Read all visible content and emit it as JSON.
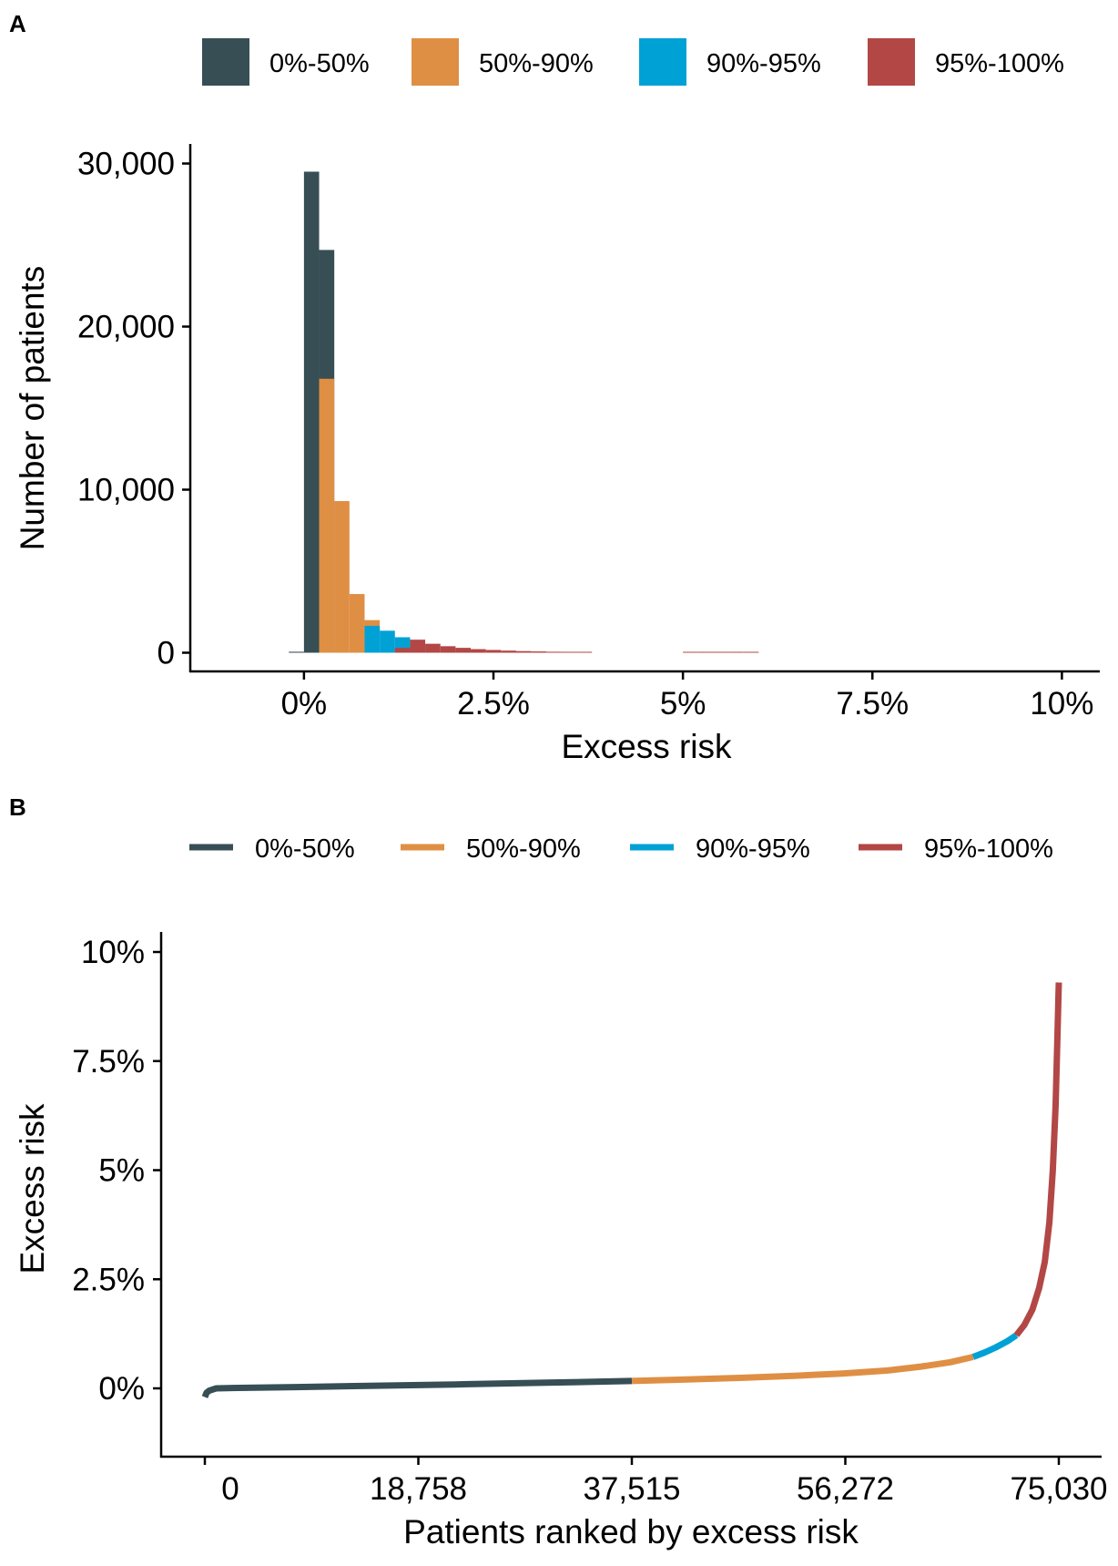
{
  "colors": {
    "0%-50%": "#374e55",
    "50%-90%": "#df8f44",
    "90%-95%": "#00a1d5",
    "95%-100%": "#b24745"
  },
  "chart_data": [
    {
      "panel": "A",
      "type": "bar",
      "legend": [
        "0%-50%",
        "50%-90%",
        "90%-95%",
        "95%-100%"
      ],
      "legend_position": "top",
      "xlabel": "Excess risk",
      "ylabel": "Number of patients",
      "xlim": [
        -1.5,
        10.5
      ],
      "ylim": [
        0,
        31000
      ],
      "x_ticks": [
        {
          "value": 0,
          "label": "0%"
        },
        {
          "value": 2.5,
          "label": "2.5%"
        },
        {
          "value": 5,
          "label": "5%"
        },
        {
          "value": 7.5,
          "label": "7.5%"
        },
        {
          "value": 10,
          "label": "10%"
        }
      ],
      "y_ticks": [
        {
          "value": 0,
          "label": "0"
        },
        {
          "value": 10000,
          "label": "10,000"
        },
        {
          "value": 20000,
          "label": "20,000"
        },
        {
          "value": 30000,
          "label": "30,000"
        }
      ],
      "grid": false,
      "bin_width": 0.2,
      "bins": [
        {
          "x": -0.2,
          "count": 60,
          "group": "0%-50%"
        },
        {
          "x": 0.0,
          "count": 29500,
          "group": "0%-50%"
        },
        {
          "x": 0.2,
          "count": 24700,
          "group": "0%-50%"
        },
        {
          "x": 0.2,
          "count": 16800,
          "group": "50%-90%"
        },
        {
          "x": 0.4,
          "count": 9300,
          "group": "50%-90%"
        },
        {
          "x": 0.6,
          "count": 3600,
          "group": "50%-90%"
        },
        {
          "x": 0.8,
          "count": 2000,
          "group": "50%-90%"
        },
        {
          "x": 0.8,
          "count": 1650,
          "group": "90%-95%"
        },
        {
          "x": 1.0,
          "count": 1350,
          "group": "90%-95%"
        },
        {
          "x": 1.2,
          "count": 950,
          "group": "90%-95%"
        },
        {
          "x": 1.2,
          "count": 300,
          "group": "95%-100%"
        },
        {
          "x": 1.4,
          "count": 800,
          "group": "95%-100%"
        },
        {
          "x": 1.6,
          "count": 550,
          "group": "95%-100%"
        },
        {
          "x": 1.8,
          "count": 400,
          "group": "95%-100%"
        },
        {
          "x": 2.0,
          "count": 300,
          "group": "95%-100%"
        },
        {
          "x": 2.2,
          "count": 220,
          "group": "95%-100%"
        },
        {
          "x": 2.4,
          "count": 170,
          "group": "95%-100%"
        },
        {
          "x": 2.6,
          "count": 130,
          "group": "95%-100%"
        },
        {
          "x": 2.8,
          "count": 100,
          "group": "95%-100%"
        },
        {
          "x": 3.0,
          "count": 80,
          "group": "95%-100%"
        },
        {
          "x": 3.2,
          "count": 60,
          "group": "95%-100%"
        },
        {
          "x": 3.4,
          "count": 50,
          "group": "95%-100%"
        },
        {
          "x": 3.6,
          "count": 40,
          "group": "95%-100%"
        },
        {
          "x": 5.0,
          "count": 30,
          "group": "95%-100%"
        },
        {
          "x": 5.2,
          "count": 30,
          "group": "95%-100%"
        },
        {
          "x": 5.4,
          "count": 30,
          "group": "95%-100%"
        },
        {
          "x": 5.6,
          "count": 30,
          "group": "95%-100%"
        },
        {
          "x": 5.8,
          "count": 30,
          "group": "95%-100%"
        }
      ]
    },
    {
      "panel": "B",
      "type": "line",
      "legend": [
        "0%-50%",
        "50%-90%",
        "90%-95%",
        "95%-100%"
      ],
      "legend_position": "top",
      "xlabel": "Patients ranked by excess risk",
      "ylabel": "Excess risk",
      "xlim": [
        -3500,
        78500
      ],
      "ylim": [
        -1.5,
        10.4
      ],
      "x_ticks": [
        {
          "value": 0,
          "label": "0"
        },
        {
          "value": 18758,
          "label": "18,758"
        },
        {
          "value": 37515,
          "label": "37,515"
        },
        {
          "value": 56272,
          "label": "56,272"
        },
        {
          "value": 75030,
          "label": "75,030"
        }
      ],
      "y_ticks": [
        {
          "value": 0,
          "label": "0%"
        },
        {
          "value": 2.5,
          "label": "2.5%"
        },
        {
          "value": 5,
          "label": "5%"
        },
        {
          "value": 7.5,
          "label": "7.5%"
        },
        {
          "value": 10,
          "label": "10%"
        }
      ],
      "grid": false,
      "series": [
        {
          "group": "0%-50%",
          "x": [
            0,
            150,
            400,
            1000,
            3000,
            8000,
            15000,
            22000,
            30000,
            37515
          ],
          "y": [
            -0.2,
            -0.1,
            -0.05,
            0,
            0.01,
            0.03,
            0.06,
            0.09,
            0.13,
            0.17
          ]
        },
        {
          "group": "50%-90%",
          "x": [
            37515,
            42000,
            47000,
            52000,
            56000,
            60000,
            63000,
            65500,
            67500
          ],
          "y": [
            0.17,
            0.2,
            0.24,
            0.29,
            0.34,
            0.41,
            0.5,
            0.6,
            0.72
          ]
        },
        {
          "group": "90%-95%",
          "x": [
            67500,
            68500,
            69500,
            70500,
            71300
          ],
          "y": [
            0.72,
            0.82,
            0.94,
            1.08,
            1.22
          ]
        },
        {
          "group": "95%-100%",
          "x": [
            71300,
            72000,
            72700,
            73300,
            73800,
            74200,
            74500,
            74750,
            74900,
            75000,
            75030
          ],
          "y": [
            1.22,
            1.45,
            1.8,
            2.3,
            2.9,
            3.8,
            5.0,
            6.5,
            8.0,
            9.0,
            9.3
          ]
        }
      ]
    }
  ]
}
